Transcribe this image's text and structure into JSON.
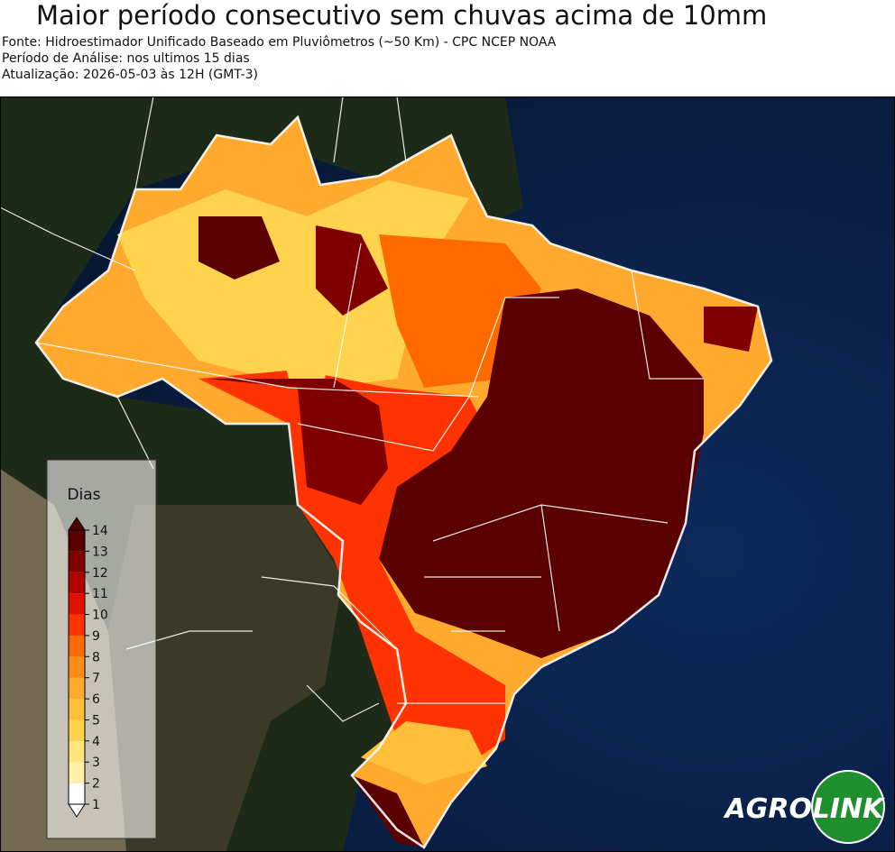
{
  "title": "Maior período consecutivo sem chuvas acima de 10mm",
  "subtitle_lines": [
    "Fonte: Hidroestimador Unificado Baseado em Pluviômetros (~50 Km) - CPC NCEP NOAA",
    "Período de Análise: nos ultimos 15 dias",
    "Atualização: 2026-05-03 às 12H (GMT-3)"
  ],
  "colorbar": {
    "label": "Dias",
    "ticks": [
      1,
      2,
      3,
      4,
      5,
      6,
      7,
      8,
      9,
      10,
      11,
      12,
      13,
      14
    ],
    "colors": [
      "#ffffff",
      "#fff2a8",
      "#ffe57a",
      "#ffd34d",
      "#ffbf3a",
      "#ffaa2e",
      "#ff8c1a",
      "#ff6a00",
      "#ff3300",
      "#e01000",
      "#b30000",
      "#800000",
      "#5a0000"
    ],
    "over_color": "#4a0000",
    "under_color": "#ffffff"
  },
  "logo": {
    "left": "AGRO",
    "right": "LINK"
  }
}
